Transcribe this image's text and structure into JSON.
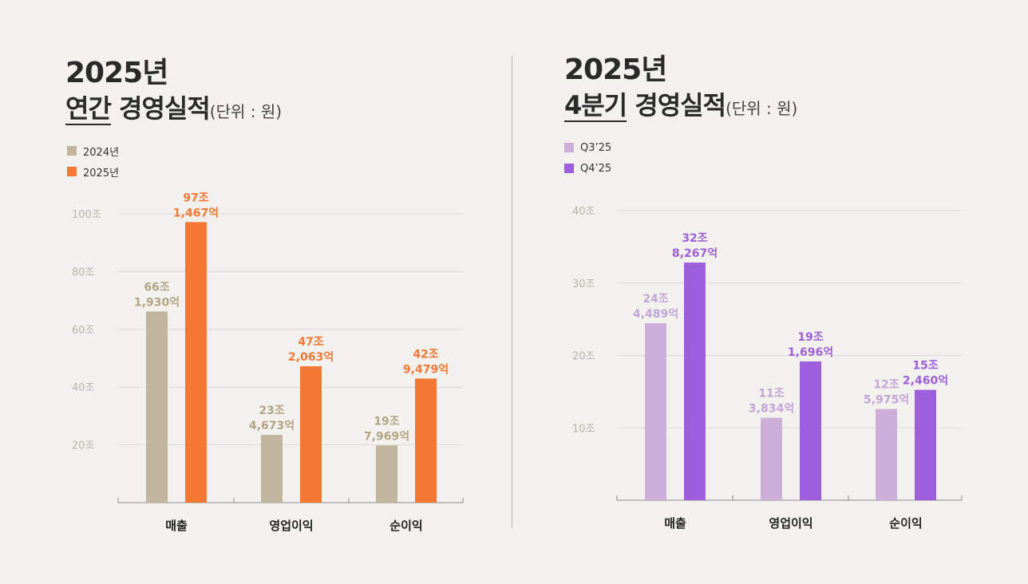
{
  "annual": {
    "title_year": "2025년",
    "title_highlight": "연간",
    "title_rest": "경영실적",
    "unit": "(단위 : 원)"
  },
  "quarterly": {
    "title_year": "2025년",
    "title_highlight": "4분기",
    "title_rest": "경영실적",
    "unit": "(단위 : 원)"
  },
  "colors": {
    "annual_prev": "#c2b59e",
    "annual_curr": "#f47733",
    "q_prev": "#cdaed8",
    "q_curr": "#9d5fdc",
    "grid": "#dedbd6",
    "tick": "#b6b2ad"
  },
  "chart_data": [
    {
      "type": "bar",
      "title": "2025년 연간 경영실적",
      "categories": [
        "매출",
        "영업이익",
        "순이익"
      ],
      "ylim": [
        0,
        100
      ],
      "yticks": [
        20,
        40,
        60,
        80,
        100
      ],
      "ytick_labels": [
        "20조",
        "40조",
        "60조",
        "80조",
        "100조"
      ],
      "series": [
        {
          "name": "2024년",
          "values": [
            66.193,
            23.4673,
            19.7969
          ],
          "labels": [
            [
              "66조",
              "1,930억"
            ],
            [
              "23조",
              "4,673억"
            ],
            [
              "19조",
              "7,969억"
            ]
          ]
        },
        {
          "name": "2025년",
          "values": [
            97.1467,
            47.2063,
            42.9479
          ],
          "labels": [
            [
              "97조",
              "1,467억"
            ],
            [
              "47조",
              "2,063억"
            ],
            [
              "42조",
              "9,479억"
            ]
          ]
        }
      ]
    },
    {
      "type": "bar",
      "title": "2025년 4분기 경영실적",
      "categories": [
        "매출",
        "영업이익",
        "순이익"
      ],
      "ylim": [
        0,
        40
      ],
      "yticks": [
        10,
        20,
        30,
        40
      ],
      "ytick_labels": [
        "10조",
        "20조",
        "30조",
        "40조"
      ],
      "series": [
        {
          "name": "Q3’25",
          "values": [
            24.4489,
            11.3834,
            12.5975
          ],
          "labels": [
            [
              "24조",
              "4,489억"
            ],
            [
              "11조",
              "3,834억"
            ],
            [
              "12조",
              "5,975억"
            ]
          ]
        },
        {
          "name": "Q4’25",
          "values": [
            32.8267,
            19.1696,
            15.246
          ],
          "labels": [
            [
              "32조",
              "8,267억"
            ],
            [
              "19조",
              "1,696억"
            ],
            [
              "15조",
              "2,460억"
            ]
          ]
        }
      ]
    }
  ]
}
